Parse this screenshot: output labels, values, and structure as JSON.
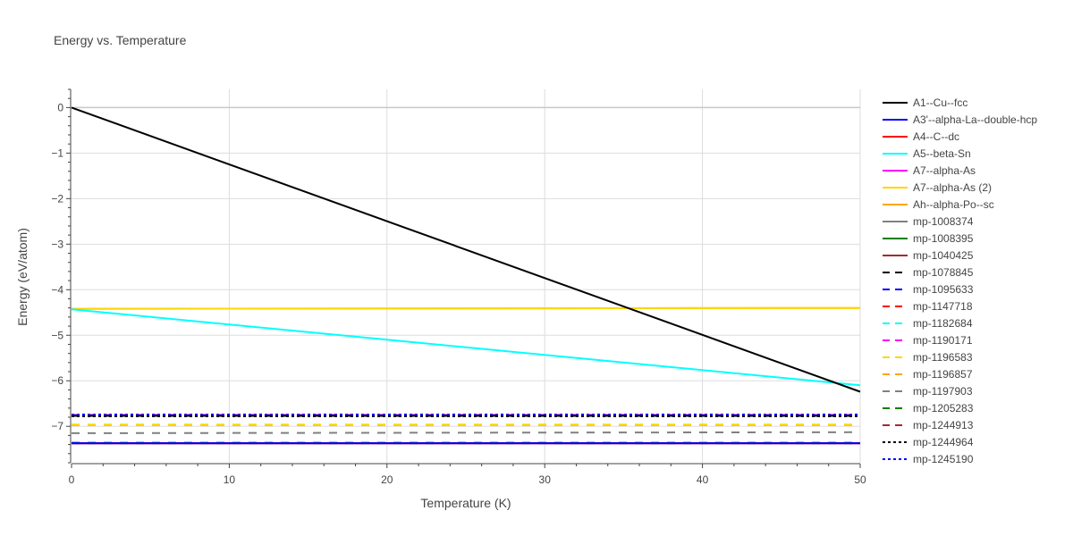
{
  "chart_data": {
    "type": "line",
    "title": "Energy vs. Temperature",
    "xlabel": "Temperature (K)",
    "ylabel": "Energy (eV/atom)",
    "xlim": [
      0,
      50
    ],
    "ylim": [
      -7.8,
      0.4
    ],
    "x_ticks": [
      0,
      10,
      20,
      30,
      40,
      50
    ],
    "y_ticks": [
      0,
      -1,
      -2,
      -3,
      -4,
      -5,
      -6,
      -7
    ],
    "grid": true,
    "legend_position": "right",
    "series": [
      {
        "name": "A1--Cu--fcc",
        "color": "#000000",
        "dash": "solid",
        "x": [
          0,
          50
        ],
        "y": [
          0,
          -6.24
        ]
      },
      {
        "name": "A3'--alpha-La--double-hcp",
        "color": "#0000ff",
        "dash": "solid",
        "x": [
          0,
          50
        ],
        "y": [
          -7.37,
          -7.37
        ]
      },
      {
        "name": "A4--C--dc",
        "color": "#ff0000",
        "dash": "solid",
        "x": [
          0,
          50
        ],
        "y": [
          -7.37,
          -7.37
        ]
      },
      {
        "name": "A5--beta-Sn",
        "color": "#00ffff",
        "dash": "solid",
        "x": [
          0,
          50
        ],
        "y": [
          -4.43,
          -6.1
        ]
      },
      {
        "name": "A7--alpha-As",
        "color": "#ff00ff",
        "dash": "solid",
        "x": [
          0,
          50
        ],
        "y": [
          -7.37,
          -7.37
        ]
      },
      {
        "name": "A7--alpha-As (2)",
        "color": "#ffd700",
        "dash": "solid",
        "x": [
          0,
          50
        ],
        "y": [
          -4.42,
          -4.4
        ]
      },
      {
        "name": "Ah--alpha-Po--sc",
        "color": "#ffa500",
        "dash": "solid",
        "x": [
          0,
          50
        ],
        "y": [
          -4.42,
          -4.4
        ]
      },
      {
        "name": "mp-1008374",
        "color": "#808080",
        "dash": "solid",
        "x": [
          0,
          50
        ],
        "y": [
          -7.37,
          -7.37
        ]
      },
      {
        "name": "mp-1008395",
        "color": "#008000",
        "dash": "solid",
        "x": [
          0,
          50
        ],
        "y": [
          -7.37,
          -7.37
        ]
      },
      {
        "name": "mp-1040425",
        "color": "#a52a2a",
        "dash": "solid",
        "x": [
          0,
          50
        ],
        "y": [
          -7.37,
          -7.37
        ]
      },
      {
        "name": "mp-1078845",
        "color": "#000000",
        "dash": "dash",
        "x": [
          0,
          50
        ],
        "y": [
          -6.77,
          -6.77
        ]
      },
      {
        "name": "mp-1095633",
        "color": "#0000ff",
        "dash": "dash",
        "x": [
          0,
          50
        ],
        "y": [
          -6.76,
          -6.76
        ]
      },
      {
        "name": "mp-1147718",
        "color": "#ff0000",
        "dash": "dash",
        "x": [
          0,
          50
        ],
        "y": [
          -7.37,
          -7.37
        ]
      },
      {
        "name": "mp-1182684",
        "color": "#00ffff",
        "dash": "dash",
        "x": [
          0,
          50
        ],
        "y": [
          -7.35,
          -7.35
        ]
      },
      {
        "name": "mp-1190171",
        "color": "#ff00ff",
        "dash": "dash",
        "x": [
          0,
          50
        ],
        "y": [
          -6.75,
          -6.75
        ]
      },
      {
        "name": "mp-1196583",
        "color": "#ffd700",
        "dash": "dash",
        "x": [
          0,
          50
        ],
        "y": [
          -6.96,
          -6.96
        ]
      },
      {
        "name": "mp-1196857",
        "color": "#ffa500",
        "dash": "dash",
        "x": [
          0,
          50
        ],
        "y": [
          -6.97,
          -6.97
        ]
      },
      {
        "name": "mp-1197903",
        "color": "#808080",
        "dash": "dash",
        "x": [
          0,
          50
        ],
        "y": [
          -7.15,
          -7.13
        ]
      },
      {
        "name": "mp-1205283",
        "color": "#008000",
        "dash": "dash",
        "x": [
          0,
          50
        ],
        "y": [
          -7.37,
          -7.37
        ]
      },
      {
        "name": "mp-1244913",
        "color": "#a52a2a",
        "dash": "dash",
        "x": [
          0,
          50
        ],
        "y": [
          -7.37,
          -7.37
        ]
      },
      {
        "name": "mp-1244964",
        "color": "#000000",
        "dash": "dot",
        "x": [
          0,
          50
        ],
        "y": [
          -6.78,
          -6.78
        ]
      },
      {
        "name": "mp-1245190",
        "color": "#0000ff",
        "dash": "dot",
        "x": [
          0,
          50
        ],
        "y": [
          -6.74,
          -6.74
        ]
      }
    ]
  }
}
